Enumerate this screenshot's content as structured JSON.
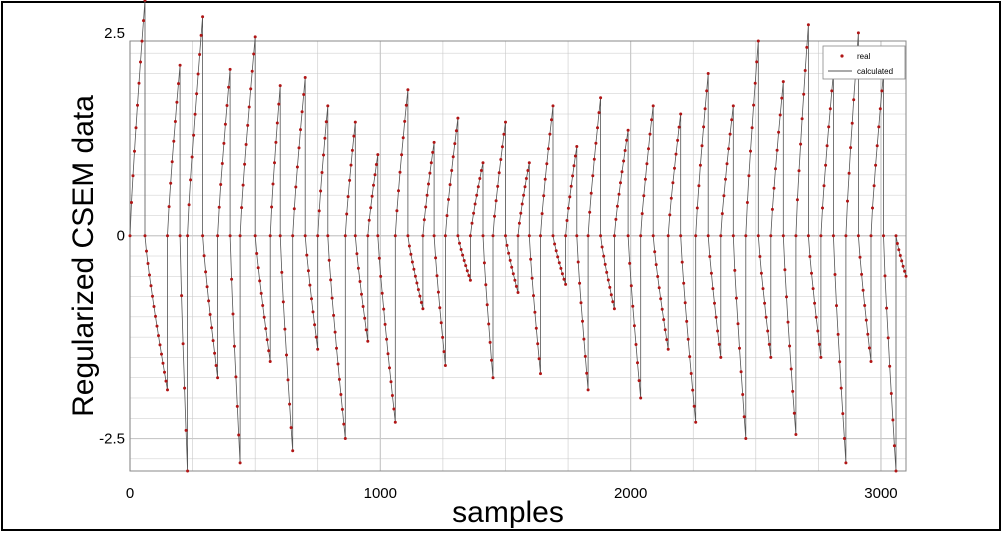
{
  "chart_data": {
    "type": "line",
    "title": "",
    "xlabel": "samples",
    "ylabel": "Regularized CSEM data",
    "xlim": [
      0,
      3100
    ],
    "ylim": [
      -2.9,
      2.4
    ],
    "xticks": [
      0,
      1000,
      2000,
      3000
    ],
    "xtick_labels": [
      "0",
      "1000",
      "2000",
      "3000"
    ],
    "yticks": [
      2.5,
      0,
      -2.5
    ],
    "ytick_labels": [
      "2.5",
      "0",
      "-2.5"
    ],
    "grid": true,
    "legend_position": "top-right",
    "colors": {
      "real": "#b01515",
      "calculated": "#555555",
      "grid": "#c8c8c8"
    },
    "series": [
      {
        "name": "real",
        "style": "points",
        "peaks": [
          [
            0,
            0,
            60,
            2.9
          ],
          [
            60,
            0,
            150,
            -1.9
          ],
          [
            150,
            0,
            200,
            2.1
          ],
          [
            200,
            0,
            230,
            -2.9
          ],
          [
            230,
            0,
            290,
            2.7
          ],
          [
            290,
            0,
            350,
            -1.75
          ],
          [
            350,
            0,
            400,
            2.05
          ],
          [
            400,
            0,
            440,
            -2.8
          ],
          [
            440,
            0,
            500,
            2.45
          ],
          [
            500,
            0,
            560,
            -1.55
          ],
          [
            560,
            0,
            600,
            1.85
          ],
          [
            600,
            0,
            650,
            -2.65
          ],
          [
            650,
            0,
            700,
            1.95
          ],
          [
            700,
            0,
            750,
            -1.4
          ],
          [
            750,
            0,
            790,
            1.6
          ],
          [
            790,
            0,
            860,
            -2.5
          ],
          [
            860,
            0,
            900,
            1.4
          ],
          [
            900,
            0,
            950,
            -1.3
          ],
          [
            950,
            0,
            990,
            1.0
          ],
          [
            990,
            0,
            1060,
            -2.3
          ],
          [
            1060,
            0,
            1110,
            1.8
          ],
          [
            1110,
            0,
            1170,
            -0.9
          ],
          [
            1170,
            0,
            1215,
            1.15
          ],
          [
            1215,
            0,
            1260,
            -1.6
          ],
          [
            1260,
            0,
            1310,
            1.45
          ],
          [
            1310,
            0,
            1360,
            -0.55
          ],
          [
            1360,
            0,
            1410,
            0.9
          ],
          [
            1410,
            0,
            1450,
            -1.75
          ],
          [
            1450,
            0,
            1500,
            1.4
          ],
          [
            1500,
            0,
            1550,
            -0.7
          ],
          [
            1550,
            0,
            1595,
            0.9
          ],
          [
            1595,
            0,
            1640,
            -1.7
          ],
          [
            1640,
            0,
            1690,
            1.6
          ],
          [
            1690,
            0,
            1740,
            -0.6
          ],
          [
            1740,
            0,
            1785,
            1.1
          ],
          [
            1785,
            0,
            1830,
            -1.9
          ],
          [
            1830,
            0,
            1880,
            1.7
          ],
          [
            1880,
            0,
            1935,
            -0.9
          ],
          [
            1935,
            0,
            1990,
            1.3
          ],
          [
            1990,
            0,
            2040,
            -2.0
          ],
          [
            2040,
            0,
            2090,
            1.6
          ],
          [
            2090,
            0,
            2150,
            -1.4
          ],
          [
            2150,
            0,
            2200,
            1.5
          ],
          [
            2200,
            0,
            2260,
            -2.3
          ],
          [
            2260,
            0,
            2310,
            2.0
          ],
          [
            2310,
            0,
            2360,
            -1.5
          ],
          [
            2360,
            0,
            2410,
            1.6
          ],
          [
            2410,
            0,
            2460,
            -2.5
          ],
          [
            2460,
            0,
            2510,
            2.4
          ],
          [
            2510,
            0,
            2560,
            -1.5
          ],
          [
            2560,
            0,
            2610,
            1.9
          ],
          [
            2610,
            0,
            2660,
            -2.45
          ],
          [
            2660,
            0,
            2710,
            2.6
          ],
          [
            2710,
            0,
            2760,
            -1.5
          ],
          [
            2760,
            0,
            2810,
            2.0
          ],
          [
            2810,
            0,
            2860,
            -2.8
          ],
          [
            2860,
            0,
            2910,
            2.5
          ],
          [
            2910,
            0,
            2960,
            -1.55
          ],
          [
            2960,
            0,
            3010,
            2.0
          ],
          [
            3010,
            0,
            3060,
            -2.9
          ],
          [
            3060,
            0,
            3100,
            -0.5
          ]
        ]
      },
      {
        "name": "calculated",
        "style": "line",
        "same_as": "real"
      }
    ],
    "legend": {
      "items": [
        "real",
        "calculated"
      ]
    }
  }
}
